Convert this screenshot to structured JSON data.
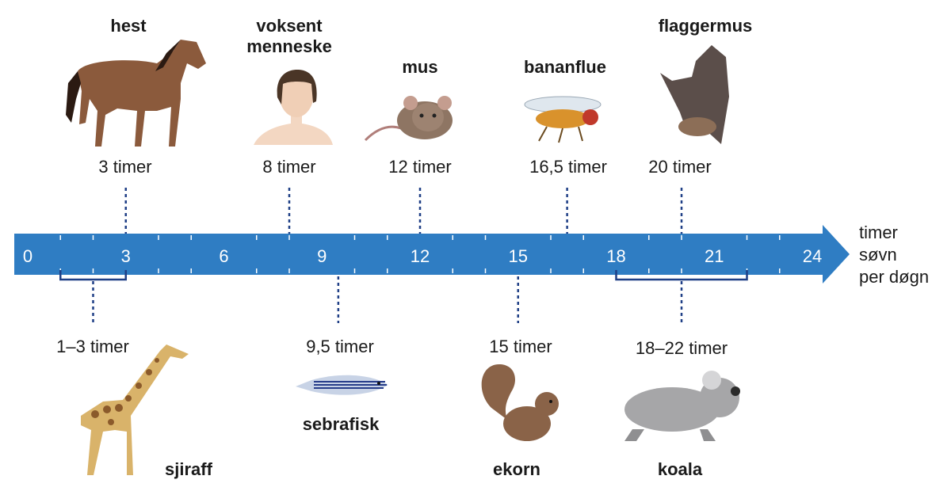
{
  "axis": {
    "min": 0,
    "max": 24,
    "ticks": [
      "0",
      "3",
      "6",
      "9",
      "12",
      "15",
      "18",
      "21",
      "24"
    ],
    "unit_lines": [
      "timer",
      "søvn",
      "per døgn"
    ],
    "bar_color": "#2f7dc3"
  },
  "animals_top": [
    {
      "name": "hest",
      "hours_label": "3 timer",
      "value": 3,
      "icon": "horse-icon"
    },
    {
      "name": "voksent menneske",
      "hours_label": "8 timer",
      "value": 8,
      "icon": "human-icon"
    },
    {
      "name": "mus",
      "hours_label": "12 timer",
      "value": 12,
      "icon": "mouse-icon"
    },
    {
      "name": "bananflue",
      "hours_label": "16,5 timer",
      "value": 16.5,
      "icon": "fruitfly-icon"
    },
    {
      "name": "flaggermus",
      "hours_label": "20 timer",
      "value": 20,
      "icon": "bat-icon"
    }
  ],
  "animals_bottom": [
    {
      "name": "sjiraff",
      "hours_label": "1–3 timer",
      "value": [
        1,
        3
      ],
      "icon": "giraffe-icon"
    },
    {
      "name": "sebrafisk",
      "hours_label": "9,5 timer",
      "value": 9.5,
      "icon": "zebrafish-icon"
    },
    {
      "name": "ekorn",
      "hours_label": "15 timer",
      "value": 15,
      "icon": "squirrel-icon"
    },
    {
      "name": "koala",
      "hours_label": "18–22 timer",
      "value": [
        18,
        22
      ],
      "icon": "koala-icon"
    }
  ]
}
